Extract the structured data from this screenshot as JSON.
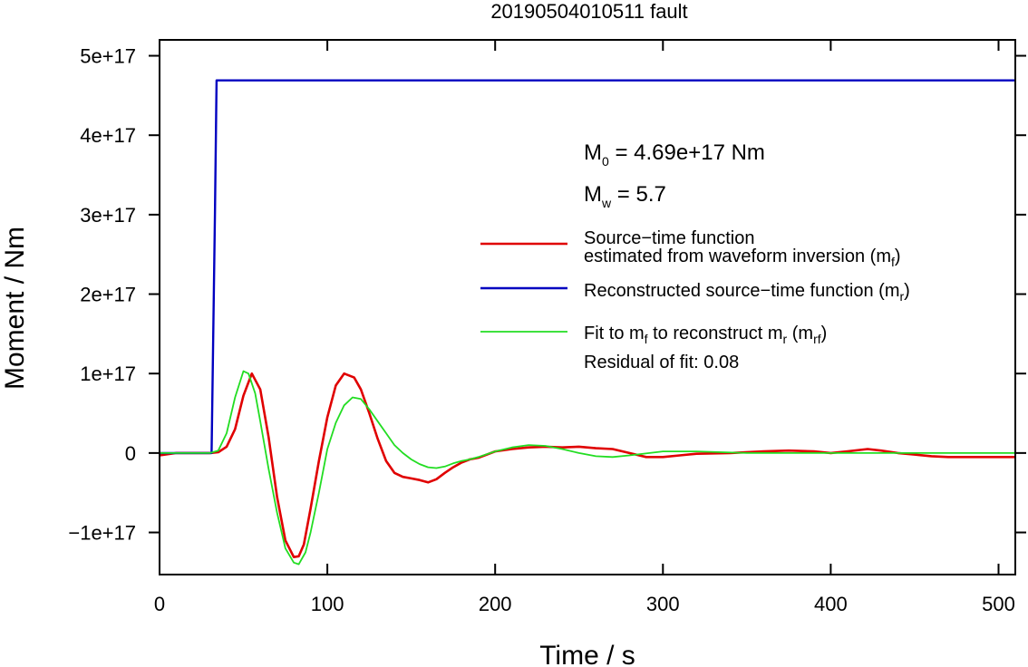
{
  "chart_data": {
    "type": "line",
    "title": "20190504010511 fault",
    "xlabel": "Time / s",
    "ylabel": "Moment / Nm",
    "xlim": [
      0,
      510
    ],
    "ylim": [
      -1.53e+17,
      5.2e+17
    ],
    "xticks": [
      0,
      100,
      200,
      300,
      400,
      500
    ],
    "xtick_labels": [
      "0",
      "100",
      "200",
      "300",
      "400",
      "500"
    ],
    "yticks": [
      -1e+17,
      0,
      1e+17,
      2e+17,
      3e+17,
      4e+17,
      5e+17
    ],
    "ytick_labels": [
      "−1e+17",
      "0",
      "1e+17",
      "2e+17",
      "3e+17",
      "4e+17",
      "5e+17"
    ],
    "grid": false,
    "legend_position": "right",
    "annotations": {
      "m0_main": "M",
      "m0_sub": "0",
      "m0_rest": " = 4.69e+17 Nm",
      "mw_main": "M",
      "mw_sub": "w",
      "mw_rest": " = 5.7",
      "residual": "Residual of fit: 0.08"
    },
    "legend": [
      {
        "line1": "Source−time function",
        "line2_main": "estimated from waveform inversion (m",
        "line2_sub": "f",
        "line2_end": ")",
        "color": "#e00000"
      },
      {
        "line1_main": "Reconstructed source−time function (m",
        "line1_sub": "r",
        "line1_end": ")",
        "color": "#0000c0"
      },
      {
        "p1": "Fit to m",
        "s1": "f",
        "p2": " to reconstruct m",
        "s2": "r",
        "p3": " (m",
        "s3": "rf",
        "p4": ")",
        "color": "#22dd22"
      }
    ],
    "series": [
      {
        "key": "mf",
        "color": "#e00000",
        "x": [
          0,
          10,
          20,
          30,
          35,
          40,
          45,
          50,
          55,
          60,
          65,
          70,
          75,
          80,
          83,
          86,
          90,
          95,
          100,
          105,
          110,
          116,
          120,
          125,
          130,
          135,
          140,
          145,
          150,
          155,
          160,
          165,
          170,
          175,
          180,
          185,
          190,
          200,
          210,
          220,
          230,
          240,
          250,
          260,
          270,
          280,
          290,
          300,
          310,
          320,
          340,
          360,
          375,
          390,
          400,
          410,
          422,
          430,
          440,
          450,
          460,
          470,
          480,
          490,
          510
        ],
        "values": [
          -3000000000000000.0,
          0,
          0,
          0,
          1000000000000000.0,
          8000000000000000.0,
          3e+16,
          7.2e+16,
          1e+17,
          8e+16,
          2e+16,
          -5.5e+16,
          -1.1e+17,
          -1.31e+17,
          -1.3e+17,
          -1.15e+17,
          -7e+16,
          -1e+16,
          4.5e+16,
          8.5e+16,
          1e+17,
          9.5e+16,
          8e+16,
          5e+16,
          1.8e+16,
          -1e+16,
          -2.5e+16,
          -3e+16,
          -3.2e+16,
          -3.4e+16,
          -3.7e+16,
          -3.3e+16,
          -2.5e+16,
          -1.8e+16,
          -1.2e+16,
          -8000000000000000.0,
          -6000000000000000.0,
          2000000000000000.0,
          5000000000000000.0,
          7000000000000000.0,
          8000000000000000.0,
          7000000000000000.0,
          8000000000000000.0,
          6000000000000000.0,
          5000000000000000.0,
          0,
          -5000000000000000.0,
          -5000000000000000.0,
          -3000000000000000.0,
          -1000000000000000.0,
          0,
          2000000000000000.0,
          3000000000000000.0,
          2000000000000000.0,
          0,
          2000000000000000.0,
          5000000000000000.0,
          3000000000000000.0,
          0,
          -2000000000000000.0,
          -4000000000000000.0,
          -5000000000000000.0,
          -5000000000000000.0,
          -5000000000000000.0,
          -5000000000000000.0
        ]
      },
      {
        "key": "mr",
        "color": "#0000c0",
        "x": [
          0,
          31,
          33,
          34,
          510
        ],
        "values": [
          0,
          0,
          3e+17,
          4.69e+17,
          4.69e+17
        ]
      },
      {
        "key": "mrf",
        "color": "#22dd22",
        "x": [
          0,
          30,
          35,
          40,
          45,
          50,
          53,
          57,
          60,
          65,
          70,
          75,
          80,
          83,
          87,
          90,
          95,
          100,
          105,
          110,
          115,
          120,
          125,
          130,
          135,
          140,
          145,
          150,
          155,
          160,
          165,
          170,
          175,
          180,
          185,
          190,
          200,
          210,
          220,
          230,
          240,
          250,
          260,
          270,
          280,
          300,
          320,
          350,
          400,
          450,
          510
        ],
        "values": [
          0,
          0,
          3000000000000000.0,
          2.5e+16,
          7e+16,
          1.03e+17,
          1e+17,
          7.5e+16,
          4e+16,
          -2e+16,
          -7.5e+16,
          -1.2e+17,
          -1.38e+17,
          -1.4e+17,
          -1.25e+17,
          -1e+17,
          -5e+16,
          5000000000000000.0,
          3.8e+16,
          6e+16,
          7e+16,
          6.8e+16,
          5.5e+16,
          4e+16,
          2.5e+16,
          1e+16,
          0,
          -8000000000000000.0,
          -1.4e+16,
          -1.8e+16,
          -1.9e+16,
          -1.7e+16,
          -1.3e+16,
          -1e+16,
          -8000000000000000.0,
          -5000000000000000.0,
          2000000000000000.0,
          7000000000000000.0,
          1e+16,
          9000000000000000.0,
          5000000000000000.0,
          0,
          -4000000000000000.0,
          -5000000000000000.0,
          -3000000000000000.0,
          2000000000000000.0,
          2000000000000000.0,
          0,
          0,
          0,
          0
        ]
      }
    ]
  }
}
